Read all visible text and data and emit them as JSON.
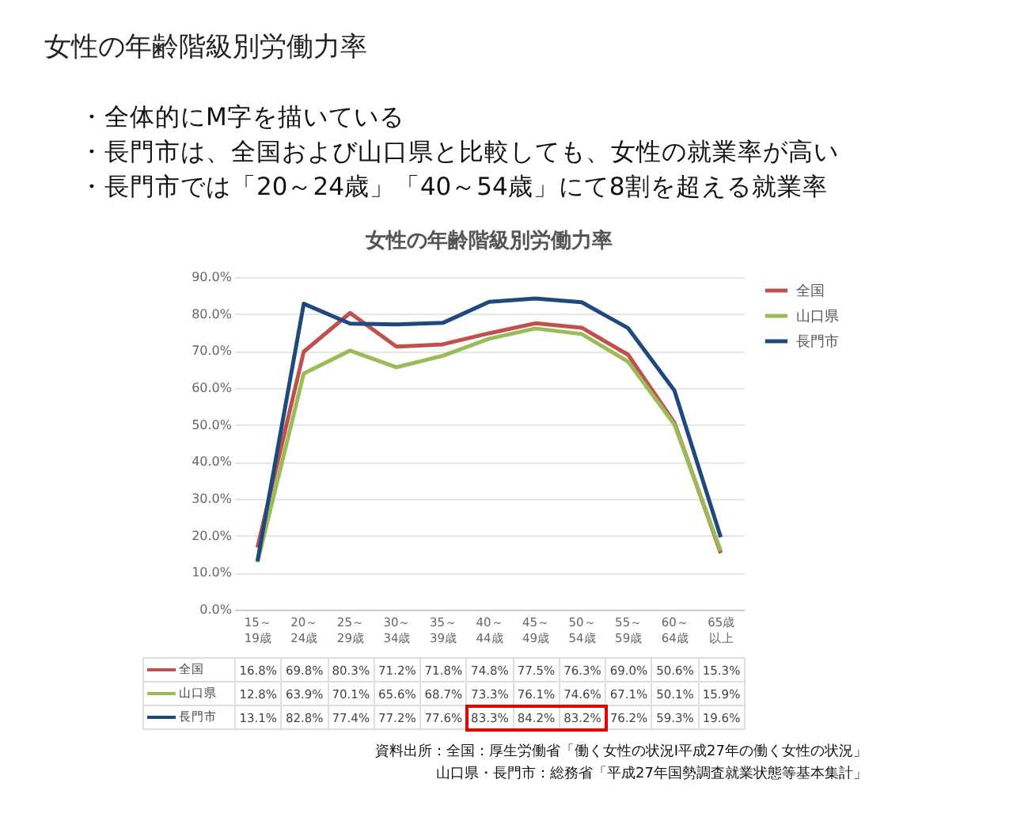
{
  "chart_data": {
    "type": "line",
    "title": "女性の年齢階級別労働力率",
    "annotations": [
      "・全体的にM字を描いている",
      "・長門市は、全国および山口県と比較しても、女性の就業率が高い",
      "・長門市では「20～24歳」「40～54歳」にて8割を超える就業率",
      "女性の年齢階級別労働力率",
      "資料出所：全国：厚生労働省「働く女性の状況Ⅰ平成27年の働く女性の状況」",
      "山口県・長門市：総務省「平成27年国勢調査就業状態等基本集計」"
    ],
    "categories": [
      "15～19歳",
      "20～24歳",
      "25～29歳",
      "30～34歳",
      "35～39歳",
      "40～44歳",
      "45～49歳",
      "50～54歳",
      "55～59歳",
      "60～64歳",
      "65歳以上"
    ],
    "series": [
      {
        "name": "全国",
        "color": "#c0504d",
        "values": [
          16.8,
          69.8,
          80.3,
          71.2,
          71.8,
          74.8,
          77.5,
          76.3,
          69.0,
          50.6,
          15.3
        ],
        "value_labels": [
          "16.8%",
          "69.8%",
          "80.3%",
          "71.2%",
          "71.8%",
          "74.8%",
          "77.5%",
          "76.3%",
          "69.0%",
          "50.6%",
          "15.3%"
        ]
      },
      {
        "name": "山口県",
        "color": "#9bbb59",
        "values": [
          12.8,
          63.9,
          70.1,
          65.6,
          68.7,
          73.3,
          76.1,
          74.6,
          67.1,
          50.1,
          15.9
        ],
        "value_labels": [
          "12.8%",
          "63.9%",
          "70.1%",
          "65.6%",
          "68.7%",
          "73.3%",
          "76.1%",
          "74.6%",
          "67.1%",
          "50.1%",
          "15.9%"
        ]
      },
      {
        "name": "長門市",
        "color": "#1f497d",
        "values": [
          13.1,
          82.8,
          77.4,
          77.2,
          77.6,
          83.3,
          84.2,
          83.2,
          76.2,
          59.3,
          19.6
        ],
        "value_labels": [
          "13.1%",
          "82.8%",
          "77.4%",
          "77.2%",
          "77.6%",
          "83.3%",
          "84.2%",
          "83.2%",
          "76.2%",
          "59.3%",
          "19.6%"
        ]
      }
    ],
    "ylim": [
      0,
      90
    ],
    "yticks": [
      {
        "value": 0,
        "label": "0.0%"
      },
      {
        "value": 10,
        "label": "10.0%"
      },
      {
        "value": 20,
        "label": "20.0%"
      },
      {
        "value": 30,
        "label": "30.0%"
      },
      {
        "value": 40,
        "label": "40.0%"
      },
      {
        "value": 50,
        "label": "50.0%"
      },
      {
        "value": 60,
        "label": "60.0%"
      },
      {
        "value": 70,
        "label": "70.0%"
      },
      {
        "value": 80,
        "label": "80.0%"
      },
      {
        "value": 90,
        "label": "90.0%"
      }
    ],
    "grid": "y",
    "legend": "right",
    "marker": "none",
    "line_style": "solid"
  }
}
